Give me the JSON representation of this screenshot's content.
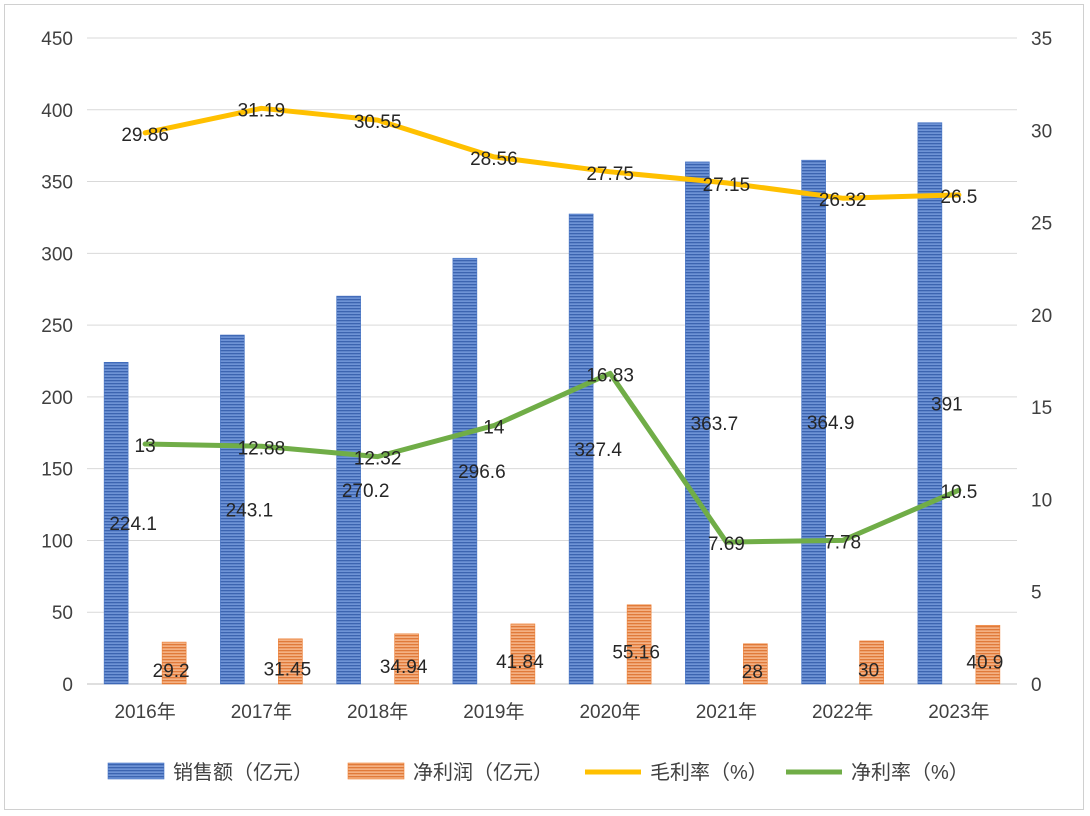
{
  "chart_data": {
    "type": "bar",
    "categories": [
      "2016年",
      "2017年",
      "2018年",
      "2019年",
      "2020年",
      "2021年",
      "2022年",
      "2023年"
    ],
    "series": [
      {
        "name": "销售额（亿元）",
        "type": "bar",
        "axis": "left",
        "color": "#4472c4",
        "values": [
          224.1,
          243.1,
          270.2,
          296.6,
          327.4,
          363.7,
          364.9,
          391
        ]
      },
      {
        "name": "净利润（亿元）",
        "type": "bar",
        "axis": "left",
        "color": "#ed7d31",
        "values": [
          29.2,
          31.45,
          34.94,
          41.84,
          55.16,
          28,
          30,
          40.9
        ]
      },
      {
        "name": "毛利率（%）",
        "type": "line",
        "axis": "right",
        "color": "#ffc000",
        "values": [
          29.86,
          31.19,
          30.55,
          28.56,
          27.75,
          27.15,
          26.32,
          26.5
        ]
      },
      {
        "name": "净利率（%）",
        "type": "line",
        "axis": "right",
        "color": "#70ad47",
        "values": [
          13,
          12.88,
          12.32,
          14,
          16.83,
          7.69,
          7.78,
          10.5
        ]
      }
    ],
    "y_left": {
      "min": 0,
      "max": 450,
      "ticks": [
        0,
        50,
        100,
        150,
        200,
        250,
        300,
        350,
        400,
        450
      ]
    },
    "y_right": {
      "min": 0,
      "max": 35,
      "ticks": [
        0,
        5,
        10,
        15,
        20,
        25,
        30,
        35
      ]
    },
    "grid": true,
    "legend_position": "bottom"
  }
}
